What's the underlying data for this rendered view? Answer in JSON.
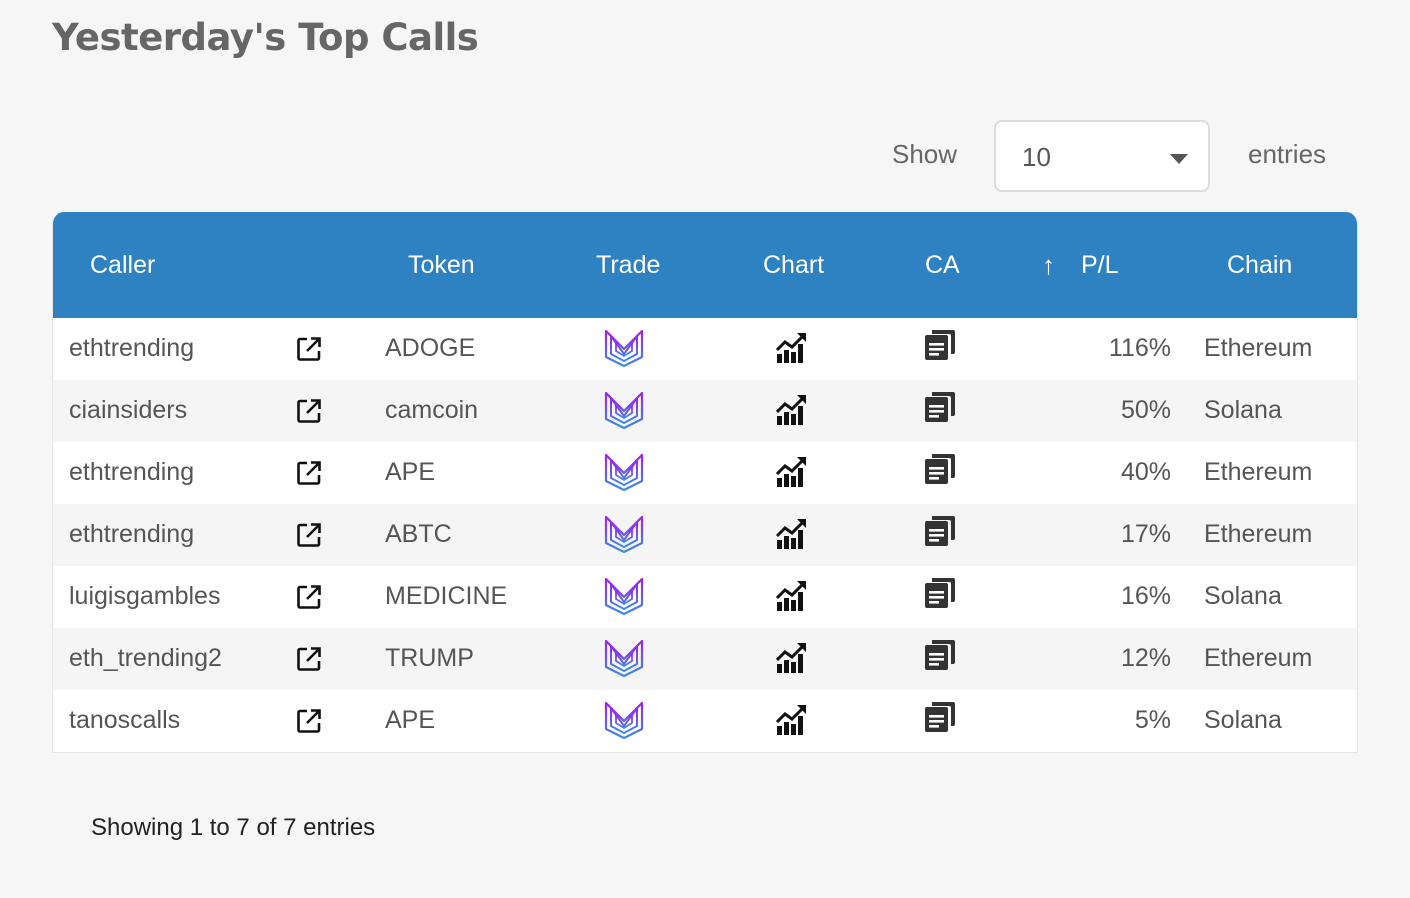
{
  "page": {
    "title": "Yesterday's Top Calls"
  },
  "length_control": {
    "show_label": "Show",
    "selected": "10",
    "entries_label": "entries"
  },
  "table": {
    "columns": {
      "caller": "Caller",
      "token": "Token",
      "trade": "Trade",
      "chart": "Chart",
      "ca": "CA",
      "pl": "P/L",
      "chain": "Chain"
    },
    "sort_icon": "↑",
    "rows": [
      {
        "caller": "ethtrending",
        "token": "ADOGE",
        "pl": "116%",
        "chain": "Ethereum"
      },
      {
        "caller": "ciainsiders",
        "token": "camcoin",
        "pl": "50%",
        "chain": "Solana"
      },
      {
        "caller": "ethtrending",
        "token": "APE",
        "pl": "40%",
        "chain": "Ethereum"
      },
      {
        "caller": "ethtrending",
        "token": "ABTC",
        "pl": "17%",
        "chain": "Ethereum"
      },
      {
        "caller": "luigisgambles",
        "token": "MEDICINE",
        "pl": "16%",
        "chain": "Solana"
      },
      {
        "caller": "eth_trending2",
        "token": "TRUMP",
        "pl": "12%",
        "chain": "Ethereum"
      },
      {
        "caller": "tanoscalls",
        "token": "APE",
        "pl": "5%",
        "chain": "Solana"
      }
    ]
  },
  "footer": {
    "info": "Showing 1 to 7 of 7 entries"
  },
  "icons": {
    "link": "external-link-icon",
    "trade": "trade-logo-icon",
    "chart": "chart-icon",
    "ca": "copy-icon"
  },
  "colors": {
    "header_bg": "#2e82c1",
    "trade_gradient_top": "#a020f0",
    "trade_gradient_bottom": "#3a8ee6"
  }
}
